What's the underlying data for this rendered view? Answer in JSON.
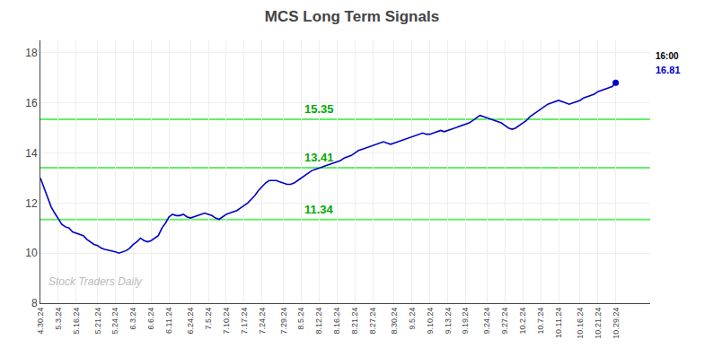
{
  "chart_data": {
    "type": "line",
    "title": "MCS Long Term Signals",
    "categories": [
      "4.30.24",
      null,
      null,
      null,
      null,
      "5.3.24",
      null,
      null,
      null,
      null,
      "5.16.24",
      null,
      null,
      null,
      null,
      null,
      "5.21.24",
      null,
      null,
      null,
      null,
      "5.24.24",
      null,
      null,
      null,
      null,
      "6.3.24",
      null,
      null,
      null,
      null,
      "6.6.24",
      null,
      null,
      null,
      null,
      "6.11.24",
      null,
      null,
      null,
      null,
      null,
      "6.24.24",
      null,
      null,
      null,
      null,
      "7.5.24",
      null,
      null,
      null,
      null,
      "7.10.24",
      null,
      null,
      null,
      null,
      "7.17.24",
      null,
      null,
      null,
      null,
      "7.24.24",
      null,
      null,
      null,
      null,
      null,
      "7.29.24",
      null,
      null,
      null,
      null,
      "8.5.24",
      null,
      null,
      null,
      null,
      "8.12.24",
      null,
      null,
      null,
      null,
      "8.16.24",
      null,
      null,
      null,
      null,
      "8.21.24",
      null,
      null,
      null,
      null,
      "8.27.24",
      null,
      null,
      null,
      null,
      null,
      "8.30.24",
      null,
      null,
      null,
      null,
      "9.5.24",
      null,
      null,
      null,
      null,
      "9.10.24",
      null,
      null,
      null,
      null,
      "9.13.24",
      null,
      null,
      null,
      null,
      "9.19.24",
      null,
      null,
      null,
      null,
      null,
      "9.24.24",
      null,
      null,
      null,
      null,
      "9.27.24",
      null,
      null,
      null,
      null,
      "10.2.24",
      null,
      null,
      null,
      null,
      "10.7.24",
      null,
      null,
      null,
      null,
      "10.11.24",
      null,
      null,
      null,
      null,
      null,
      "10.16.24",
      null,
      null,
      null,
      null,
      "10.21.24",
      null,
      null,
      null,
      null,
      "10.29.24"
    ],
    "values": [
      13.0,
      12.6,
      12.2,
      11.85,
      11.6,
      11.35,
      11.15,
      11.05,
      11.0,
      10.85,
      10.8,
      10.75,
      10.7,
      10.55,
      10.45,
      10.35,
      10.3,
      10.2,
      10.15,
      10.12,
      10.1,
      10.05,
      10.0,
      10.05,
      10.1,
      10.2,
      10.35,
      10.45,
      10.6,
      10.5,
      10.45,
      10.5,
      10.6,
      10.7,
      11.0,
      11.2,
      11.45,
      11.55,
      11.5,
      11.5,
      11.55,
      11.45,
      11.4,
      11.45,
      11.5,
      11.55,
      11.6,
      11.55,
      11.5,
      11.4,
      11.35,
      11.45,
      11.55,
      11.6,
      11.65,
      11.7,
      11.8,
      11.9,
      12.0,
      12.15,
      12.3,
      12.5,
      12.65,
      12.8,
      12.9,
      12.9,
      12.9,
      12.85,
      12.8,
      12.75,
      12.75,
      12.8,
      12.9,
      13.0,
      13.1,
      13.2,
      13.3,
      13.35,
      13.41,
      13.45,
      13.5,
      13.55,
      13.6,
      13.65,
      13.7,
      13.8,
      13.85,
      13.9,
      14.0,
      14.1,
      14.15,
      14.2,
      14.25,
      14.3,
      14.35,
      14.4,
      14.45,
      14.4,
      14.35,
      14.4,
      14.45,
      14.5,
      14.55,
      14.6,
      14.65,
      14.7,
      14.75,
      14.8,
      14.75,
      14.75,
      14.8,
      14.85,
      14.9,
      14.85,
      14.9,
      14.95,
      15.0,
      15.05,
      15.1,
      15.15,
      15.2,
      15.3,
      15.4,
      15.5,
      15.45,
      15.4,
      15.35,
      15.3,
      15.25,
      15.2,
      15.1,
      15.0,
      14.95,
      15.0,
      15.1,
      15.2,
      15.3,
      15.45,
      15.55,
      15.65,
      15.75,
      15.85,
      15.95,
      16.0,
      16.05,
      16.1,
      16.05,
      16.0,
      15.95,
      16.0,
      16.05,
      16.1,
      16.2,
      16.25,
      16.3,
      16.35,
      16.45,
      16.5,
      16.55,
      16.6,
      16.65,
      16.81
    ],
    "color": "#0000CC",
    "hlines": [
      {
        "value": 11.34,
        "label": "11.34",
        "color": "#66ee66"
      },
      {
        "value": 13.41,
        "label": "13.41",
        "color": "#66ee66"
      },
      {
        "value": 15.35,
        "label": "15.35",
        "color": "#66ee66"
      }
    ],
    "last_time": "16:00",
    "last_value": 16.81,
    "watermark": "Stock Traders Daily",
    "ylim": [
      8,
      18.5
    ],
    "yticks": [
      8,
      10,
      12,
      14,
      16,
      18
    ],
    "grid": true
  }
}
